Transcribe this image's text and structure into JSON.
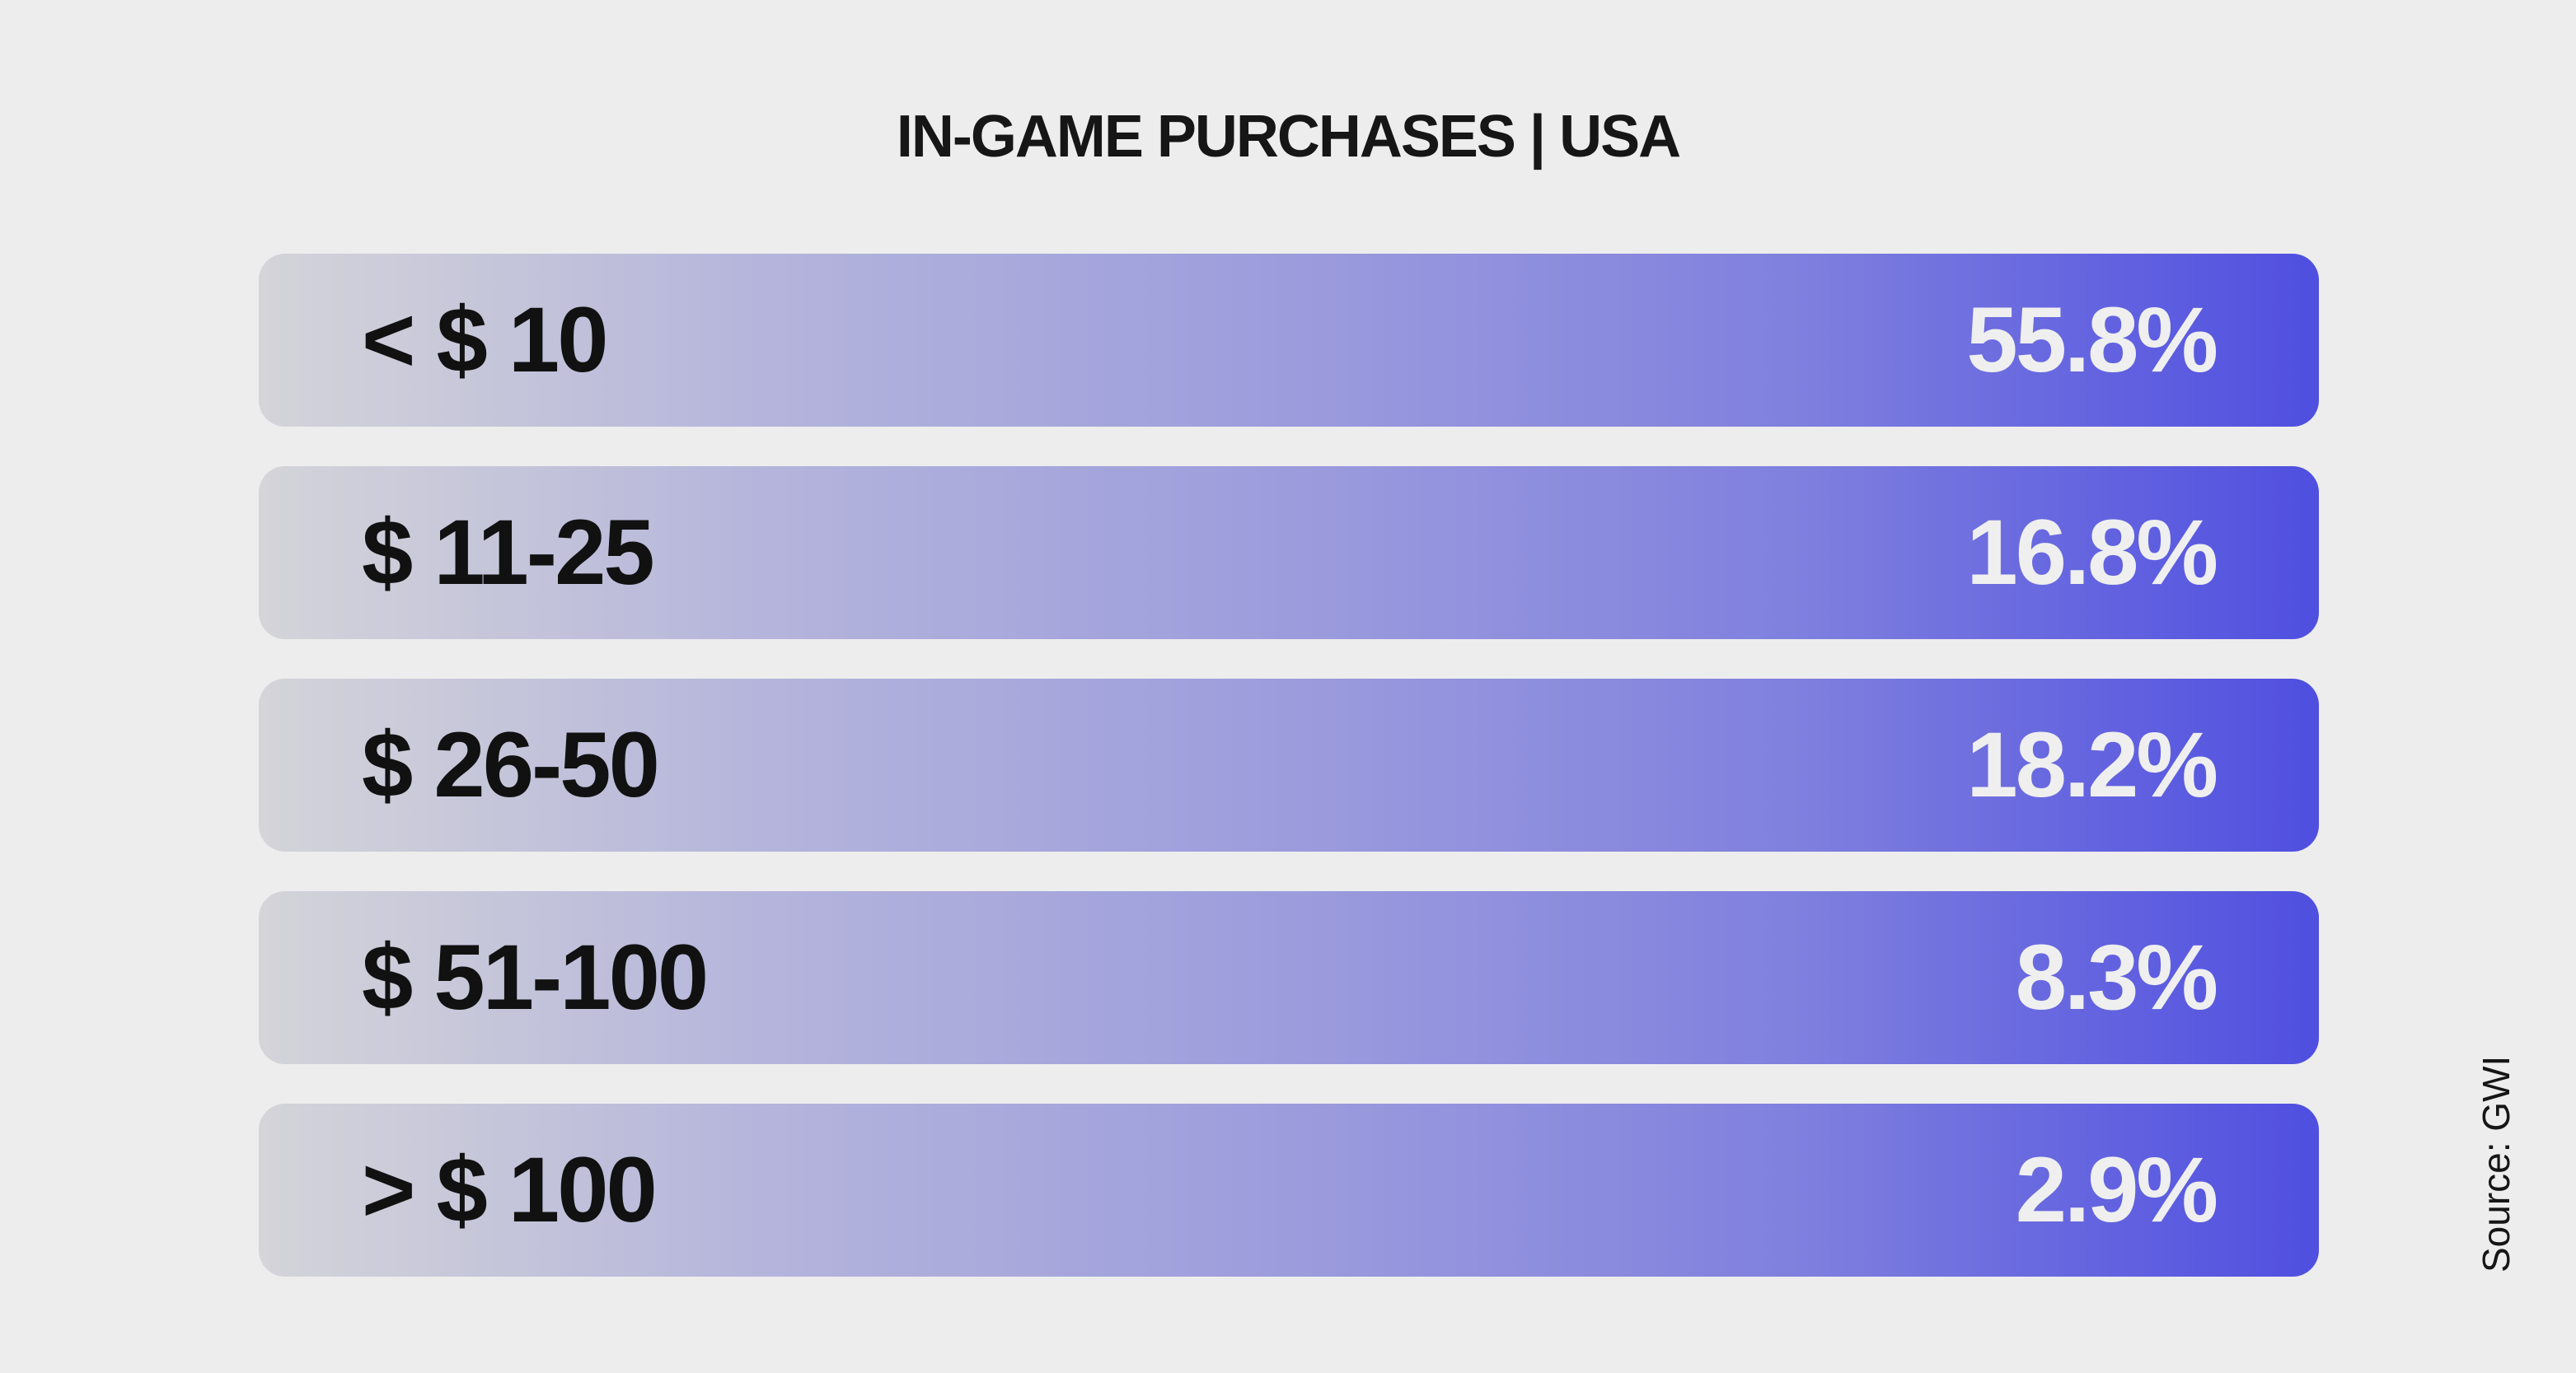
{
  "chart_data": {
    "type": "bar",
    "title": "IN-GAME PURCHASES | USA",
    "categories": [
      "< $ 10",
      "$ 11-25",
      "$ 26-50",
      "$ 51-100",
      "> $ 100"
    ],
    "values": [
      55.8,
      16.8,
      18.2,
      8.3,
      2.9
    ],
    "value_labels": [
      "55.8%",
      "16.8%",
      "18.2%",
      "8.3%",
      "2.9%"
    ],
    "source": "Source: GWI",
    "colors": {
      "background": "#ededed",
      "bar_start": "#d4d4d9",
      "bar_end": "#4f4fe0",
      "label_text": "#111111",
      "value_text": "#efefef"
    }
  }
}
